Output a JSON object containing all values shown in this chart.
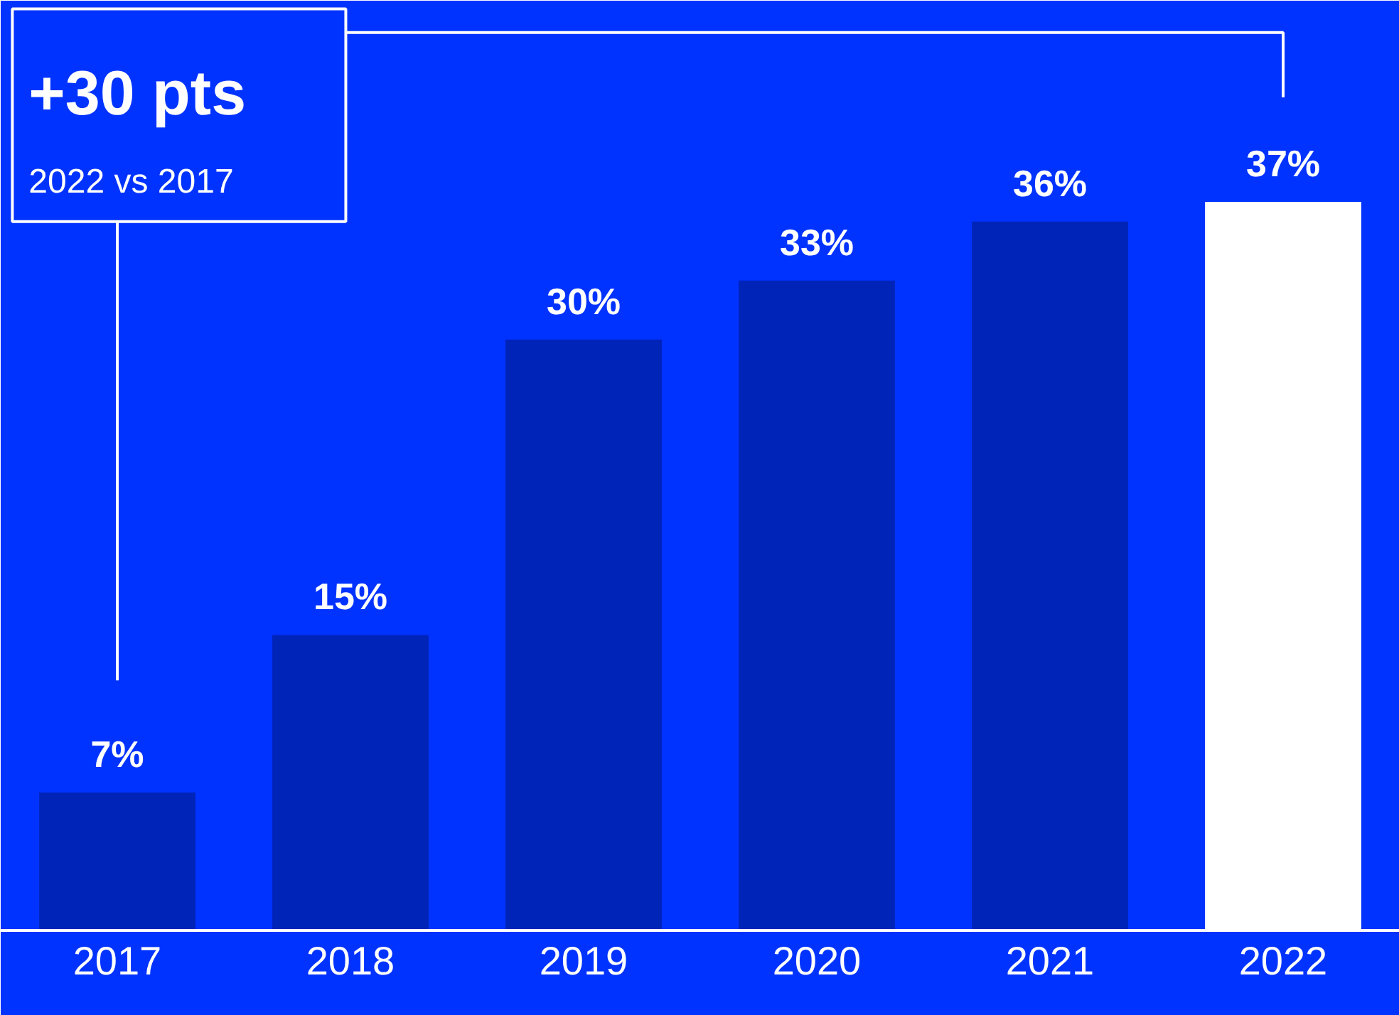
{
  "chart_data": {
    "type": "bar",
    "categories": [
      "2017",
      "2018",
      "2019",
      "2020",
      "2021",
      "2022"
    ],
    "values": [
      7,
      15,
      30,
      33,
      36,
      37
    ],
    "value_labels": [
      "7%",
      "15%",
      "30%",
      "33%",
      "36%",
      "37%"
    ],
    "colors": [
      "#0023b8",
      "#0023b8",
      "#0023b8",
      "#0023b8",
      "#0023b8",
      "#ffffff"
    ],
    "annotations": [
      "+30 pts",
      "2022 vs 2017"
    ]
  }
}
